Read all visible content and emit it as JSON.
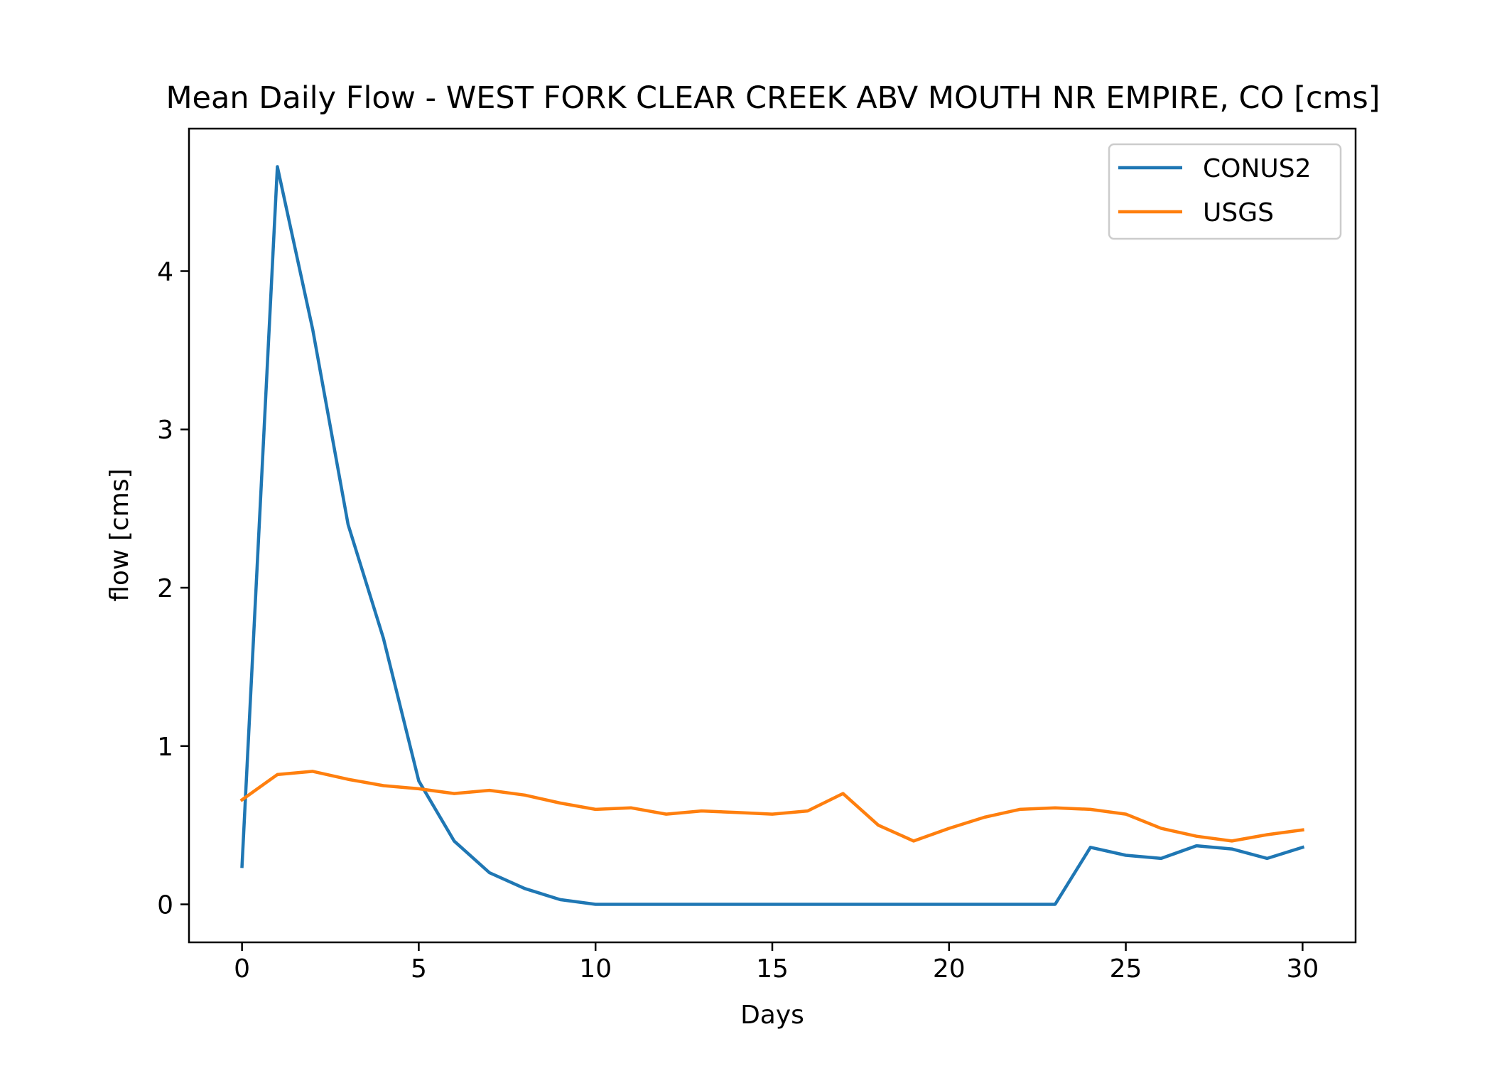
{
  "chart_data": {
    "type": "line",
    "title": "Mean Daily Flow - WEST FORK CLEAR CREEK ABV MOUTH NR EMPIRE, CO [cms]",
    "xlabel": "Days",
    "ylabel": "flow [cms]",
    "xlim": [
      -1.5,
      31.5
    ],
    "ylim": [
      -0.24,
      4.9
    ],
    "xticks": [
      0,
      5,
      10,
      15,
      20,
      25,
      30
    ],
    "yticks": [
      0,
      1,
      2,
      3,
      4
    ],
    "grid": false,
    "legend_position": "upper-right",
    "x": [
      0,
      1,
      2,
      3,
      4,
      5,
      6,
      7,
      8,
      9,
      10,
      11,
      12,
      13,
      14,
      15,
      16,
      17,
      18,
      19,
      20,
      21,
      22,
      23,
      24,
      25,
      26,
      27,
      28,
      29,
      30
    ],
    "series": [
      {
        "name": "CONUS2",
        "color": "#1f77b4",
        "values": [
          0.24,
          4.66,
          3.63,
          2.4,
          1.68,
          0.78,
          0.4,
          0.2,
          0.1,
          0.03,
          0.0,
          0.0,
          0.0,
          0.0,
          0.0,
          0.0,
          0.0,
          0.0,
          0.0,
          0.0,
          0.0,
          0.0,
          0.0,
          0.0,
          0.36,
          0.31,
          0.29,
          0.37,
          0.35,
          0.29,
          0.36
        ]
      },
      {
        "name": "USGS",
        "color": "#ff7f0e",
        "values": [
          0.66,
          0.82,
          0.84,
          0.79,
          0.75,
          0.73,
          0.7,
          0.72,
          0.69,
          0.64,
          0.6,
          0.61,
          0.57,
          0.59,
          0.58,
          0.57,
          0.59,
          0.7,
          0.5,
          0.4,
          0.48,
          0.55,
          0.6,
          0.61,
          0.6,
          0.57,
          0.48,
          0.43,
          0.4,
          0.44,
          0.47
        ]
      }
    ]
  }
}
